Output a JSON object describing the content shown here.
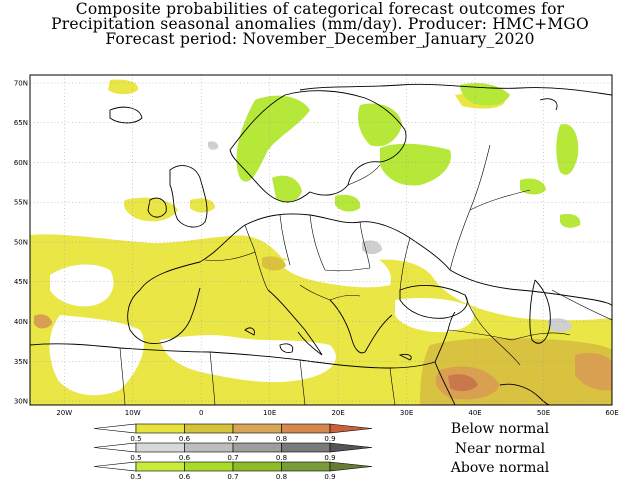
{
  "title": {
    "line1": "Composite probabilities of categorical forecast outcomes for",
    "line2": "Precipitation seasonal anomalies (mm/day). Producer: HMC+MGO",
    "line3": "Forecast period:  November_December_January_2020"
  },
  "axes": {
    "lat_ticks": [
      "70N",
      "65N",
      "60N",
      "55N",
      "50N",
      "45N",
      "40N",
      "35N",
      "30N"
    ],
    "lon_ticks": [
      "20W",
      "10W",
      "0",
      "10E",
      "20E",
      "30E",
      "40E",
      "50E",
      "60E"
    ]
  },
  "colorbars": [
    {
      "name": "Below normal",
      "values": [
        "0.5",
        "0.6",
        "0.7",
        "0.8",
        "0.9"
      ],
      "colors": [
        "#ffffff",
        "#e8e23c",
        "#d4c23a",
        "#d8a556",
        "#d6874d",
        "#c8623a"
      ]
    },
    {
      "name": "Near normal",
      "values": [
        "0.5",
        "0.6",
        "0.7",
        "0.8",
        "0.9"
      ],
      "colors": [
        "#ffffff",
        "#d8d8d8",
        "#bdbdbd",
        "#9e9e9e",
        "#7a7a7a",
        "#555555"
      ]
    },
    {
      "name": "Above normal",
      "values": [
        "0.5",
        "0.6",
        "0.7",
        "0.8",
        "0.9"
      ],
      "colors": [
        "#ffffff",
        "#c8ec3c",
        "#a8dc2a",
        "#8cbc2a",
        "#7a9c38",
        "#667c34"
      ]
    }
  ],
  "map_colors": {
    "below_light": "#eae646",
    "below_mid": "#d8c240",
    "below_dark": "#d8a050",
    "below_darkest": "#c8784a",
    "above_light": "#b6e83a",
    "near_light": "#cfcfcf"
  }
}
